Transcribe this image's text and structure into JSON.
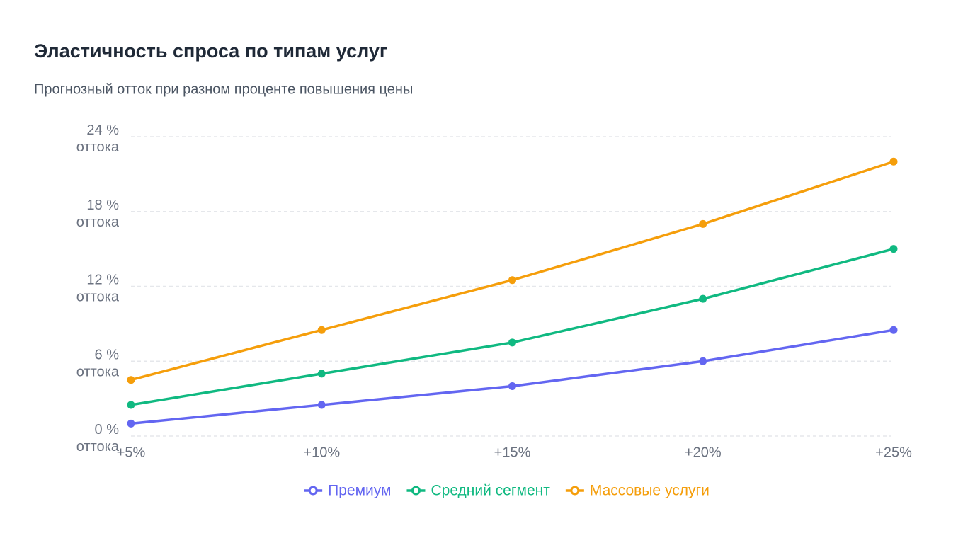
{
  "chart_data": {
    "type": "line",
    "title": "Эластичность спроса по типам услуг",
    "subtitle": "Прогнозный отток при разном проценте повышения цены",
    "categories": [
      "+5%",
      "+10%",
      "+15%",
      "+20%",
      "+25%"
    ],
    "series": [
      {
        "name": "Премиум",
        "color": "#6366f1",
        "values": [
          1,
          2.5,
          4,
          6,
          8.5
        ]
      },
      {
        "name": "Средний сегмент",
        "color": "#10b981",
        "values": [
          2.5,
          5,
          7.5,
          11,
          15
        ]
      },
      {
        "name": "Массовые услуги",
        "color": "#f59e0b",
        "values": [
          4.5,
          8.5,
          12.5,
          17,
          22
        ]
      }
    ],
    "ylim": [
      0,
      24
    ],
    "yticks": [
      {
        "value": 0,
        "label": "0 %\nоттока"
      },
      {
        "value": 6,
        "label": "6 %\nоттока"
      },
      {
        "value": 12,
        "label": "12 %\nоттока"
      },
      {
        "value": 18,
        "label": "18 %\nоттока"
      },
      {
        "value": 24,
        "label": "24 %\nоттока"
      }
    ],
    "grid": true
  }
}
